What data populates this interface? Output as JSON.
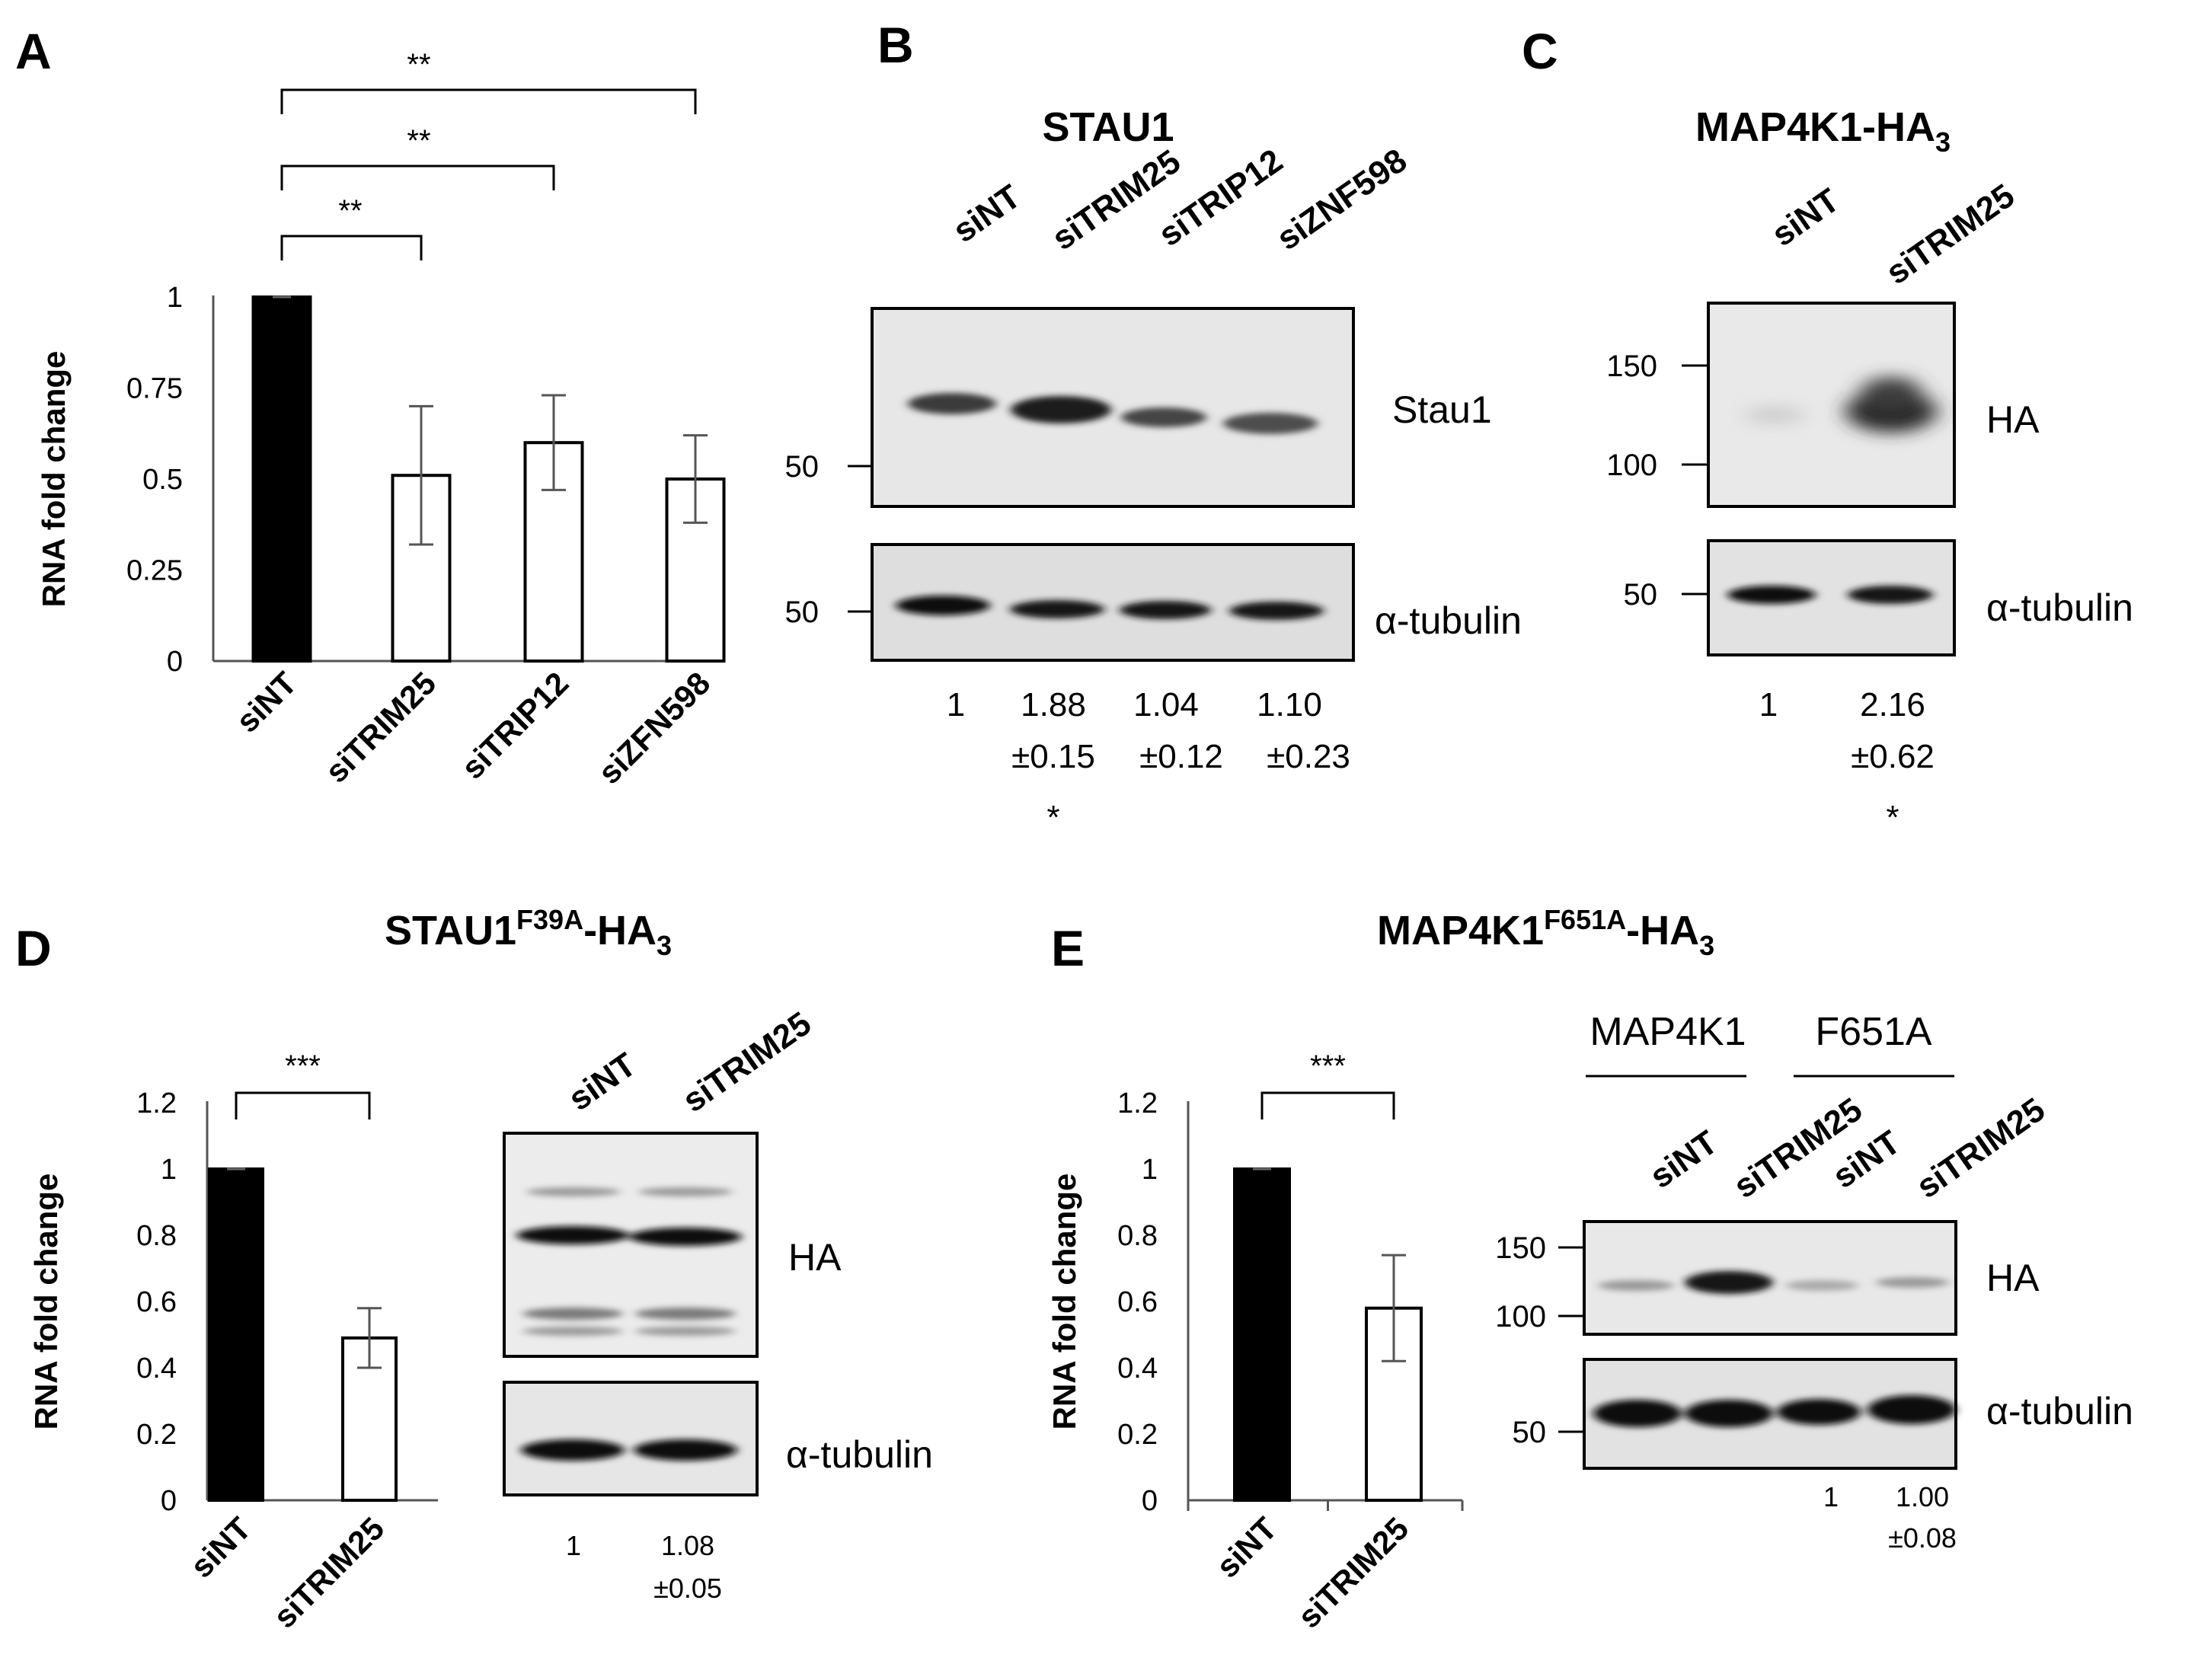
{
  "panels": {
    "A": {
      "label": "A"
    },
    "B": {
      "label": "B",
      "title": "STAU1",
      "lanes": [
        "siNT",
        "siTRIM25",
        "siTRIP12",
        "siZNF598"
      ],
      "bands": {
        "top": "Stau1",
        "bottom": "α-tubulin"
      },
      "mw_top": [
        "50"
      ],
      "mw_bottom": [
        "50"
      ],
      "quant": [
        {
          "v": "1",
          "e": ""
        },
        {
          "v": "1.88",
          "e": "±0.15"
        },
        {
          "v": "1.04",
          "e": "±0.12"
        },
        {
          "v": "1.10",
          "e": "±0.23"
        }
      ],
      "sig": [
        "",
        "*",
        "",
        ""
      ]
    },
    "C": {
      "label": "C",
      "title_main": "MAP4K1-HA",
      "title_sub": "3",
      "lanes": [
        "siNT",
        "siTRIM25"
      ],
      "bands": {
        "top": "HA",
        "bottom": "α-tubulin"
      },
      "mw_top": [
        "150",
        "100"
      ],
      "mw_bottom": [
        "50"
      ],
      "quant": [
        {
          "v": "1",
          "e": ""
        },
        {
          "v": "2.16",
          "e": "±0.62"
        }
      ],
      "sig": [
        "",
        "*"
      ]
    },
    "D": {
      "label": "D",
      "title_main": "STAU1",
      "title_sup": "F39A",
      "title_rest": "-HA",
      "title_sub": "3",
      "lanes": [
        "siNT",
        "siTRIM25"
      ],
      "bands": {
        "top": "HA",
        "bottom": "α-tubulin"
      },
      "quant": [
        {
          "v": "1",
          "e": ""
        },
        {
          "v": "1.08",
          "e": "±0.05"
        }
      ]
    },
    "E": {
      "label": "E",
      "title_main": "MAP4K1",
      "title_sup": "F651A",
      "title_rest": "-HA",
      "title_sub": "3",
      "groups": [
        "MAP4K1",
        "F651A"
      ],
      "lanes": [
        "siNT",
        "siTRIM25",
        "siNT",
        "siTRIM25"
      ],
      "bands": {
        "top": "HA",
        "bottom": "α-tubulin"
      },
      "mw_top": [
        "150",
        "100"
      ],
      "mw_bottom": [
        "50"
      ],
      "quant": [
        {
          "v": "",
          "e": ""
        },
        {
          "v": "",
          "e": ""
        },
        {
          "v": "1",
          "e": ""
        },
        {
          "v": "1.00",
          "e": "±0.08"
        }
      ]
    }
  },
  "chart_data": [
    {
      "panel": "A",
      "type": "bar",
      "ylabel": "RNA fold change",
      "categories": [
        "siNT",
        "siTRIM25",
        "siTRIP12",
        "siZFN598"
      ],
      "values": [
        1.0,
        0.51,
        0.6,
        0.5
      ],
      "errors": [
        0.0,
        0.19,
        0.13,
        0.12
      ],
      "ylim": [
        0,
        1
      ],
      "yticks": [
        0,
        0.25,
        0.5,
        0.75,
        1
      ],
      "tick_labels": [
        "0",
        "0.25",
        "0.5",
        "0.75",
        "1"
      ],
      "colors": [
        "#000000",
        "#ffffff",
        "#ffffff",
        "#ffffff"
      ],
      "significance": [
        {
          "from": "siNT",
          "to": "siTRIM25",
          "label": "**"
        },
        {
          "from": "siNT",
          "to": "siTRIP12",
          "label": "**"
        },
        {
          "from": "siNT",
          "to": "siZFN598",
          "label": "**"
        }
      ]
    },
    {
      "panel": "D",
      "type": "bar",
      "ylabel": "RNA fold change",
      "categories": [
        "siNT",
        "siTRIM25"
      ],
      "values": [
        1.0,
        0.49
      ],
      "errors": [
        0.0,
        0.09
      ],
      "ylim": [
        0,
        1.2
      ],
      "yticks": [
        0,
        0.2,
        0.4,
        0.6,
        0.8,
        1,
        1.2
      ],
      "tick_labels": [
        "0",
        "0.2",
        "0.4",
        "0.6",
        "0.8",
        "1",
        "1.2"
      ],
      "colors": [
        "#000000",
        "#ffffff"
      ],
      "significance": [
        {
          "from": "siNT",
          "to": "siTRIM25",
          "label": "***"
        }
      ]
    },
    {
      "panel": "E",
      "type": "bar",
      "ylabel": "RNA fold change",
      "categories": [
        "siNT",
        "siTRIM25"
      ],
      "values": [
        1.0,
        0.58
      ],
      "errors": [
        0.0,
        0.16
      ],
      "ylim": [
        0,
        1.2
      ],
      "yticks": [
        0,
        0.2,
        0.4,
        0.6,
        0.8,
        1,
        1.2
      ],
      "tick_labels": [
        "0",
        "0.2",
        "0.4",
        "0.6",
        "0.8",
        "1",
        "1.2"
      ],
      "colors": [
        "#000000",
        "#ffffff"
      ],
      "significance": [
        {
          "from": "siNT",
          "to": "siTRIM25",
          "label": "***"
        }
      ]
    }
  ]
}
